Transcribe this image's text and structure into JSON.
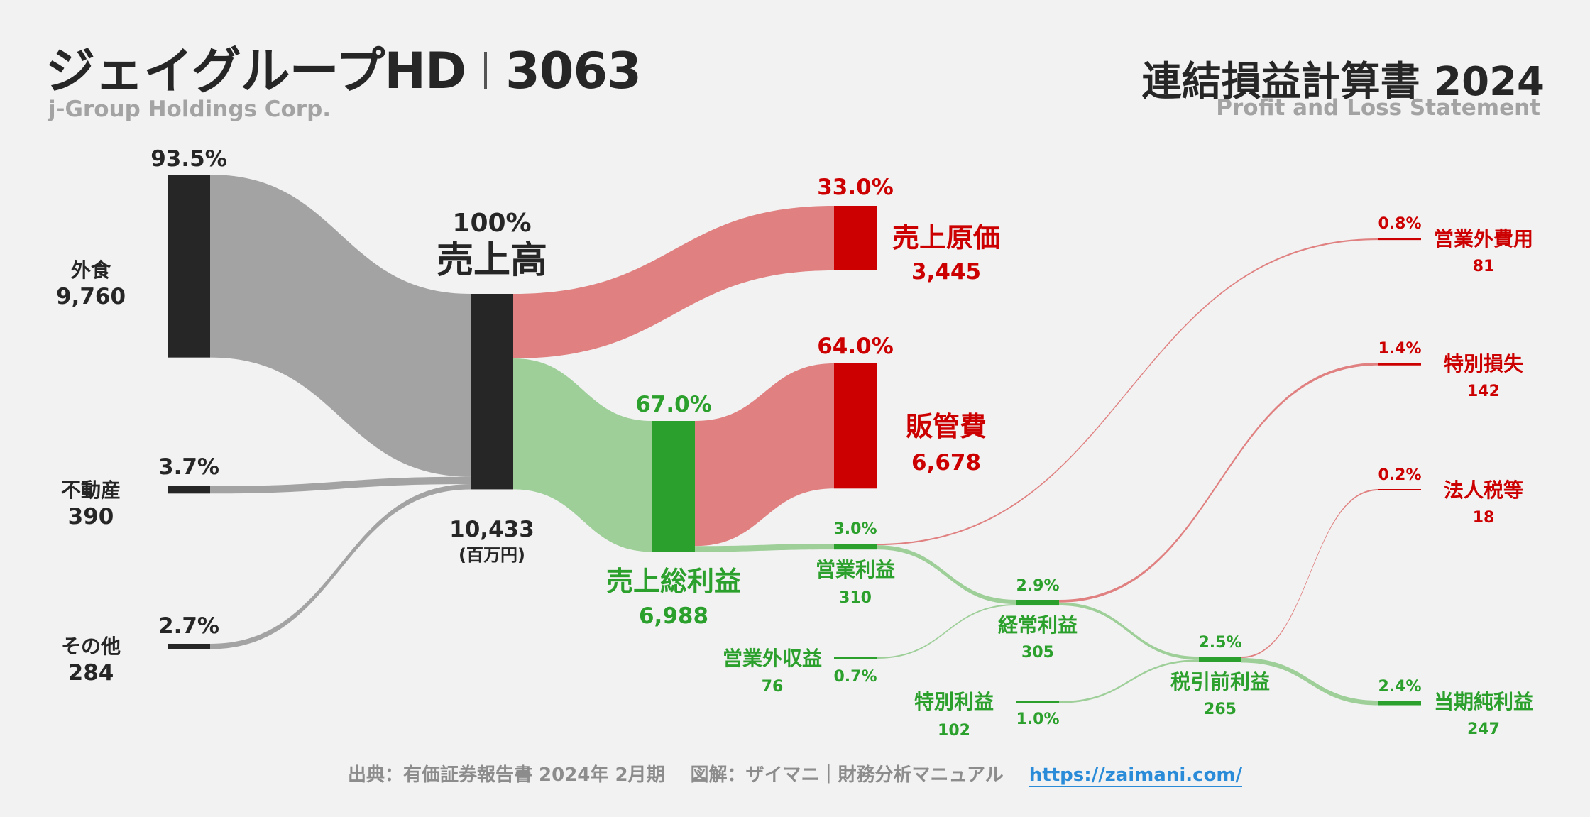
{
  "header": {
    "company_ja": "ジェイグループHD",
    "ticker": "3063",
    "company_en": "j-Group Holdings Corp.",
    "statement_title": "連結損益計算書 2024",
    "statement_en": "Profit and Loss Statement"
  },
  "footer": {
    "source": "出典：有価証券報告書 2024年 2月期",
    "credit": "図解：ザイマニ｜財務分析マニュアル",
    "url": "https://zaimani.com/"
  },
  "colors": {
    "dark": "#262626",
    "gray_flow": "#a3a3a3",
    "red": "#cc0000",
    "red_flow": "#e08080",
    "green": "#2ca02c",
    "green_flow": "#9ecf99"
  },
  "chart_data": {
    "type": "sankey",
    "unit": "(百万円)",
    "nodes": [
      {
        "id": "gaishoku",
        "label": "外食",
        "value": 9760,
        "pct": "93.5%",
        "color": "dark"
      },
      {
        "id": "fudosan",
        "label": "不動産",
        "value": 390,
        "pct": "3.7%",
        "color": "dark"
      },
      {
        "id": "sonota",
        "label": "その他",
        "value": 284,
        "pct": "2.7%",
        "color": "dark"
      },
      {
        "id": "uriage",
        "label": "売上高",
        "value": 10433,
        "pct": "100%",
        "color": "dark"
      },
      {
        "id": "genka",
        "label": "売上原価",
        "value": 3445,
        "pct": "33.0%",
        "color": "red"
      },
      {
        "id": "arari",
        "label": "売上総利益",
        "value": 6988,
        "pct": "67.0%",
        "color": "green"
      },
      {
        "id": "hankan",
        "label": "販管費",
        "value": 6678,
        "pct": "64.0%",
        "color": "red"
      },
      {
        "id": "eigyo",
        "label": "営業利益",
        "value": 310,
        "pct": "3.0%",
        "color": "green"
      },
      {
        "id": "eigyogai_shueki",
        "label": "営業外収益",
        "value": 76,
        "pct": "0.7%",
        "color": "green"
      },
      {
        "id": "eigyogai_hiyo",
        "label": "営業外費用",
        "value": 81,
        "pct": "0.8%",
        "color": "red"
      },
      {
        "id": "keijo",
        "label": "経常利益",
        "value": 305,
        "pct": "2.9%",
        "color": "green"
      },
      {
        "id": "tokubetsu_rieki",
        "label": "特別利益",
        "value": 102,
        "pct": "1.0%",
        "color": "green"
      },
      {
        "id": "tokubetsu_sonshitsu",
        "label": "特別損失",
        "value": 142,
        "pct": "1.4%",
        "color": "red"
      },
      {
        "id": "zeimae",
        "label": "税引前利益",
        "value": 265,
        "pct": "2.5%",
        "color": "green"
      },
      {
        "id": "hojinzei",
        "label": "法人税等",
        "value": 18,
        "pct": "0.2%",
        "color": "red"
      },
      {
        "id": "junrieki",
        "label": "当期純利益",
        "value": 247,
        "pct": "2.4%",
        "color": "green"
      }
    ],
    "links": [
      {
        "source": "gaishoku",
        "target": "uriage",
        "value": 9760
      },
      {
        "source": "fudosan",
        "target": "uriage",
        "value": 390
      },
      {
        "source": "sonota",
        "target": "uriage",
        "value": 284
      },
      {
        "source": "uriage",
        "target": "genka",
        "value": 3445
      },
      {
        "source": "uriage",
        "target": "arari",
        "value": 6988
      },
      {
        "source": "arari",
        "target": "hankan",
        "value": 6678
      },
      {
        "source": "arari",
        "target": "eigyo",
        "value": 310
      },
      {
        "source": "eigyo",
        "target": "eigyogai_hiyo",
        "value": 81
      },
      {
        "source": "eigyo",
        "target": "keijo",
        "value": 229
      },
      {
        "source": "eigyogai_shueki",
        "target": "keijo",
        "value": 76
      },
      {
        "source": "keijo",
        "target": "tokubetsu_sonshitsu",
        "value": 142
      },
      {
        "source": "keijo",
        "target": "zeimae",
        "value": 163
      },
      {
        "source": "tokubetsu_rieki",
        "target": "zeimae",
        "value": 102
      },
      {
        "source": "zeimae",
        "target": "hojinzei",
        "value": 18
      },
      {
        "source": "zeimae",
        "target": "junrieki",
        "value": 247
      }
    ]
  }
}
